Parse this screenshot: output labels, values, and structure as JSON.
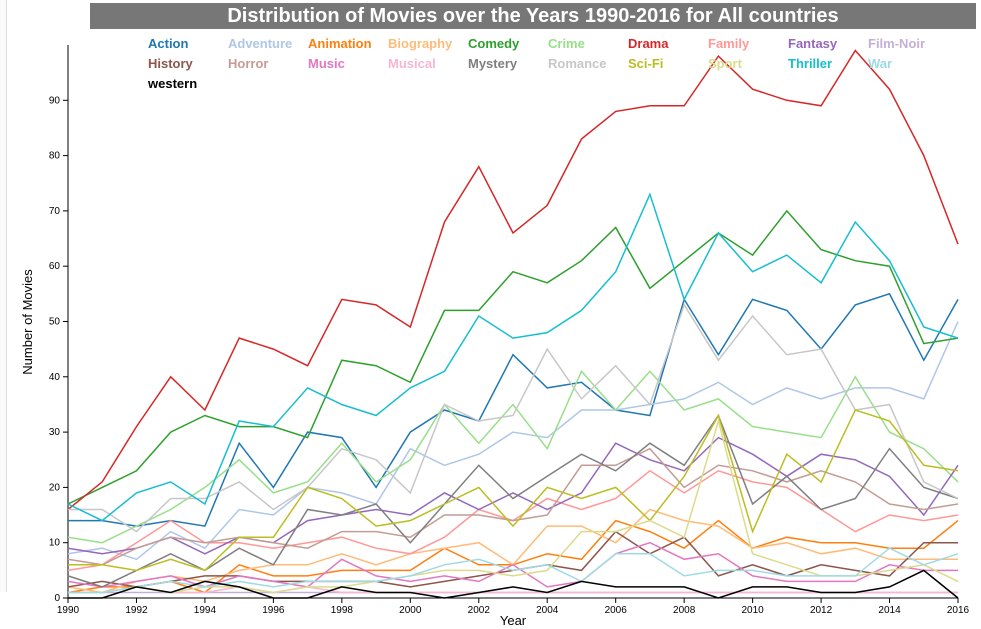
{
  "chart_data": {
    "type": "line",
    "title": "Distribution of Movies over the Years 1990-2016 for All countries",
    "xlabel": "Year",
    "ylabel": "Number of Movies",
    "xlim": [
      1990,
      2016
    ],
    "ylim": [
      0,
      100
    ],
    "x_ticks": [
      1990,
      1992,
      1994,
      1996,
      1998,
      2000,
      2002,
      2004,
      2006,
      2008,
      2010,
      2012,
      2014,
      2016
    ],
    "y_ticks": [
      0,
      10,
      20,
      30,
      40,
      50,
      60,
      70,
      80,
      90
    ],
    "x": [
      1990,
      1991,
      1992,
      1993,
      1994,
      1995,
      1996,
      1997,
      1998,
      1999,
      2000,
      2001,
      2002,
      2003,
      2004,
      2005,
      2006,
      2007,
      2008,
      2009,
      2010,
      2011,
      2012,
      2013,
      2014,
      2015,
      2016
    ],
    "legend_placement": "top",
    "series": [
      {
        "name": "Action",
        "color": "#1f77b4",
        "values": [
          14,
          14,
          13,
          14,
          13,
          28,
          20,
          30,
          29,
          20,
          30,
          34,
          32,
          44,
          38,
          39,
          34,
          33,
          54,
          44,
          54,
          52,
          45,
          53,
          55,
          43,
          54
        ]
      },
      {
        "name": "Adventure",
        "color": "#aec7e8",
        "values": [
          8,
          9,
          7,
          12,
          9,
          16,
          15,
          20,
          19,
          17,
          27,
          24,
          26,
          30,
          29,
          34,
          34,
          35,
          36,
          39,
          35,
          38,
          36,
          38,
          38,
          36,
          50
        ]
      },
      {
        "name": "Animation",
        "color": "#ff7f0e",
        "values": [
          1,
          2,
          2,
          3,
          1,
          6,
          4,
          4,
          5,
          5,
          5,
          9,
          6,
          6,
          8,
          7,
          14,
          12,
          9,
          14,
          9,
          11,
          10,
          10,
          9,
          9,
          14
        ]
      },
      {
        "name": "Biography",
        "color": "#ffbb78",
        "values": [
          2,
          1,
          3,
          4,
          3,
          5,
          6,
          6,
          8,
          6,
          8,
          9,
          10,
          6,
          13,
          13,
          10,
          16,
          14,
          13,
          9,
          10,
          8,
          9,
          7,
          7,
          7
        ]
      },
      {
        "name": "Comedy",
        "color": "#2ca02c",
        "values": [
          17,
          20,
          23,
          30,
          33,
          31,
          31,
          29,
          43,
          42,
          39,
          52,
          52,
          59,
          57,
          61,
          67,
          56,
          61,
          66,
          62,
          70,
          63,
          61,
          60,
          46,
          47
        ]
      },
      {
        "name": "Crime",
        "color": "#98df8a",
        "values": [
          11,
          10,
          13,
          16,
          20,
          25,
          19,
          21,
          28,
          21,
          25,
          35,
          28,
          35,
          27,
          41,
          34,
          41,
          34,
          36,
          31,
          30,
          29,
          40,
          30,
          27,
          21
        ]
      },
      {
        "name": "Drama",
        "color": "#d62728",
        "values": [
          16,
          21,
          31,
          40,
          34,
          47,
          45,
          42,
          54,
          53,
          49,
          68,
          78,
          66,
          71,
          83,
          88,
          89,
          89,
          98,
          92,
          90,
          89,
          99,
          92,
          80,
          64
        ]
      },
      {
        "name": "Family",
        "color": "#ff9896",
        "values": [
          5,
          6,
          10,
          14,
          10,
          10,
          9,
          10,
          11,
          9,
          8,
          11,
          16,
          14,
          18,
          16,
          18,
          23,
          19,
          23,
          21,
          20,
          16,
          12,
          15,
          14,
          15
        ]
      },
      {
        "name": "Fantasy",
        "color": "#9467bd",
        "values": [
          9,
          8,
          9,
          11,
          8,
          11,
          10,
          14,
          15,
          16,
          15,
          19,
          16,
          19,
          16,
          19,
          28,
          25,
          23,
          29,
          26,
          22,
          26,
          25,
          22,
          15,
          24
        ]
      },
      {
        "name": "Film-Noir",
        "color": "#c5b0d5",
        "values": [
          1,
          1,
          1,
          1,
          1,
          1,
          1,
          1,
          1,
          1,
          1,
          1,
          1,
          1,
          1,
          1,
          1,
          1,
          1,
          1,
          1,
          1,
          1,
          1,
          1,
          1,
          1
        ]
      },
      {
        "name": "History",
        "color": "#8c564b",
        "values": [
          2,
          3,
          2,
          3,
          4,
          4,
          3,
          3,
          3,
          3,
          2,
          3,
          4,
          5,
          6,
          5,
          12,
          8,
          11,
          4,
          6,
          4,
          6,
          5,
          4,
          10,
          10
        ]
      },
      {
        "name": "Horror",
        "color": "#c49c94",
        "values": [
          7,
          6,
          9,
          11,
          10,
          11,
          10,
          9,
          12,
          12,
          11,
          15,
          15,
          14,
          15,
          24,
          24,
          27,
          20,
          24,
          23,
          21,
          23,
          21,
          17,
          16,
          17
        ]
      },
      {
        "name": "Music",
        "color": "#e377c2",
        "values": [
          3,
          2,
          3,
          4,
          2,
          4,
          3,
          2,
          7,
          4,
          3,
          4,
          3,
          6,
          2,
          3,
          8,
          10,
          7,
          8,
          4,
          3,
          3,
          3,
          6,
          5,
          5
        ]
      },
      {
        "name": "Musical",
        "color": "#f7b6d2",
        "values": [
          1,
          1,
          2,
          1,
          1,
          2,
          1,
          2,
          1,
          1,
          1,
          1,
          1,
          1,
          1,
          1,
          1,
          1,
          1,
          1,
          1,
          1,
          1,
          1,
          1,
          1,
          1
        ]
      },
      {
        "name": "Mystery",
        "color": "#7f7f7f",
        "values": [
          4,
          2,
          5,
          8,
          5,
          9,
          6,
          16,
          15,
          17,
          10,
          17,
          24,
          18,
          22,
          26,
          23,
          28,
          24,
          33,
          17,
          22,
          16,
          18,
          27,
          20,
          18
        ]
      },
      {
        "name": "Romance",
        "color": "#c7c7c7",
        "values": [
          16,
          16,
          12,
          18,
          18,
          21,
          16,
          20,
          27,
          25,
          19,
          35,
          32,
          33,
          45,
          36,
          42,
          35,
          53,
          43,
          51,
          44,
          45,
          34,
          35,
          21,
          18
        ]
      },
      {
        "name": "Sci-Fi",
        "color": "#bcbd22",
        "values": [
          6,
          6,
          5,
          7,
          5,
          11,
          11,
          20,
          18,
          13,
          14,
          17,
          20,
          13,
          20,
          18,
          20,
          14,
          22,
          33,
          12,
          26,
          21,
          34,
          32,
          24,
          23
        ]
      },
      {
        "name": "Sport",
        "color": "#dbdb8d",
        "values": [
          1,
          1,
          2,
          1,
          2,
          2,
          1,
          2,
          2,
          3,
          4,
          5,
          5,
          4,
          5,
          12,
          12,
          14,
          11,
          32,
          8,
          6,
          4,
          4,
          5,
          6,
          3
        ]
      },
      {
        "name": "Thriller",
        "color": "#17becf",
        "values": [
          17,
          14,
          19,
          21,
          17,
          32,
          31,
          38,
          35,
          33,
          38,
          41,
          51,
          47,
          48,
          52,
          59,
          73,
          54,
          66,
          59,
          62,
          57,
          68,
          61,
          49,
          47
        ]
      },
      {
        "name": "War",
        "color": "#9edae5",
        "values": [
          1,
          1,
          2,
          3,
          2,
          3,
          2,
          3,
          3,
          3,
          4,
          6,
          7,
          5,
          6,
          3,
          8,
          8,
          4,
          5,
          5,
          4,
          4,
          4,
          9,
          6,
          8
        ]
      },
      {
        "name": "western",
        "color": "#000000",
        "values": [
          0,
          0,
          2,
          1,
          3,
          2,
          0,
          0,
          2,
          1,
          1,
          0,
          1,
          2,
          1,
          3,
          2,
          2,
          2,
          0,
          2,
          2,
          1,
          1,
          2,
          5,
          0
        ]
      }
    ]
  }
}
